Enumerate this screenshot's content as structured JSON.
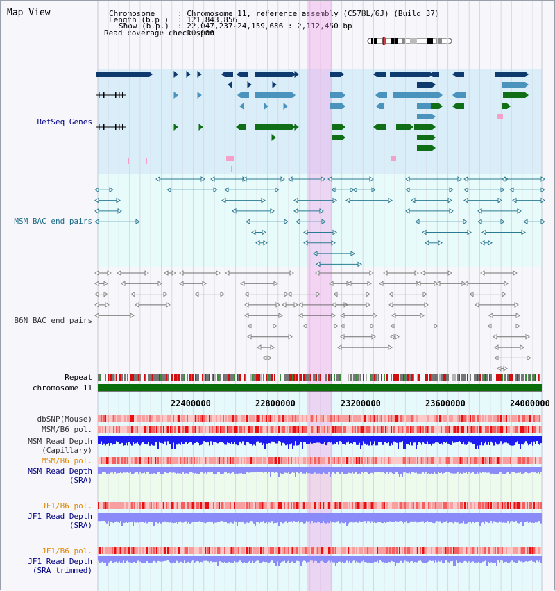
{
  "view_title": "Map View",
  "header": {
    "chromosome_label": "Chromosome",
    "chromosome_value": ": Chromosome 11, reference assembly (C57BL/6J) (Build 37)",
    "length_label": "Length (b.p.)",
    "length_value": ": 121,843,856",
    "show_label": "Show (b.p.)",
    "show_value": ": 22,047,237-24,159,686 : 2,112,450 bp",
    "coverage_label": "Read coverage check span",
    "coverage_value": ": 10,000"
  },
  "tracks": {
    "refseq": "RefSeq Genes",
    "msm_bac": "MSM BAC end pairs",
    "b6n_bac": "B6N BAC end pairs",
    "repeat": "Repeat",
    "chromosome": "chromosome 11",
    "dbsnp": "dbSNP(Mouse)",
    "msm_b6_pol_1": "MSM/B6 pol.",
    "msm_depth_cap_1": "MSM Read Depth",
    "msm_depth_cap_2": "(Capillary)",
    "msm_b6_pol_2": "MSM/B6 pol.",
    "msm_depth_sra_1": "MSM Read Depth",
    "msm_depth_sra_2": "(SRA)",
    "jf1_b6_pol_1": "JF1/B6 pol.",
    "jf1_depth_sra_1": "JF1 Read Depth",
    "jf1_depth_sra_2": "(SRA)",
    "jf1_b6_pol_2": "JF1/B6 pol.",
    "jf1_depth_trim_1": "JF1 Read Depth",
    "jf1_depth_trim_2": "(SRA trimmed)"
  },
  "scale": {
    "ticks": [
      "22400000",
      "22800000",
      "23200000",
      "23600000",
      "24000000"
    ]
  },
  "colors": {
    "refseq_bg": "#daeef9",
    "bac_bg": "#e8fbfb",
    "b6n_bg": "#f6f6fb",
    "highlight": "#f6c8ef",
    "gene_navy": "#0e3a6e",
    "gene_blue": "#4a93bd",
    "gene_green": "#0f6e16",
    "msm_line": "#2a7a92",
    "b6n_line": "#707070",
    "depth_blue": "#1c1cf0",
    "depth_light": "#8a8af8",
    "label_navy": "#000080",
    "label_teal": "#1a6a86",
    "label_orange": "#e08a00"
  }
}
